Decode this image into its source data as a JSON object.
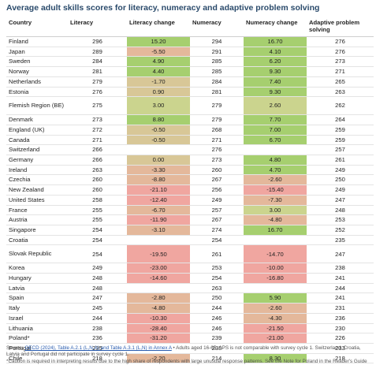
{
  "chart_data": {
    "type": "table",
    "title": "Average adult skills scores for literacy, numeracy and adaptive problem solving",
    "columns": [
      "Country",
      "Literacy",
      "Literacy change",
      "Numeracy",
      "Numeracy change",
      "Adaptive problem solving"
    ],
    "rows": [
      [
        "Finland",
        "296",
        "15.20",
        "294",
        "16.70",
        "276"
      ],
      [
        "Japan",
        "289",
        "-5.50",
        "291",
        "4.10",
        "276"
      ],
      [
        "Sweden",
        "284",
        "4.90",
        "285",
        "6.20",
        "273"
      ],
      [
        "Norway",
        "281",
        "4.40",
        "285",
        "9.30",
        "271"
      ],
      [
        "Netherlands",
        "279",
        "-1.70",
        "284",
        "7.40",
        "265"
      ],
      [
        "Estonia",
        "276",
        "0.90",
        "281",
        "9.30",
        "263"
      ],
      [
        "Flemish Region (BE)",
        "275",
        "3.00",
        "279",
        "2.60",
        "262"
      ],
      [
        "Denmark",
        "273",
        "8.80",
        "279",
        "7.70",
        "264"
      ],
      [
        "England (UK)",
        "272",
        "-0.50",
        "268",
        "7.00",
        "259"
      ],
      [
        "Canada",
        "271",
        "-0.50",
        "271",
        "6.70",
        "259"
      ],
      [
        "Switzerland",
        "266",
        "",
        "276",
        "",
        "257"
      ],
      [
        "Germany",
        "266",
        "0.00",
        "273",
        "4.80",
        "261"
      ],
      [
        "Ireland",
        "263",
        "-3.30",
        "260",
        "4.70",
        "249"
      ],
      [
        "Czechia",
        "260",
        "-8.80",
        "267",
        "-2.60",
        "250"
      ],
      [
        "New Zealand",
        "260",
        "-21.10",
        "256",
        "-15.40",
        "249"
      ],
      [
        "United States",
        "258",
        "-12.40",
        "249",
        "-7.30",
        "247"
      ],
      [
        "France",
        "255",
        "-6.70",
        "257",
        "3.00",
        "248"
      ],
      [
        "Austria",
        "255",
        "-11.90",
        "267",
        "-4.80",
        "253"
      ],
      [
        "Singapore",
        "254",
        "-3.10",
        "274",
        "16.70",
        "252"
      ],
      [
        "Croatia",
        "254",
        "",
        "254",
        "",
        "235"
      ],
      [
        "Slovak Republic",
        "254",
        "-19.50",
        "261",
        "-14.70",
        "247"
      ],
      [
        "Korea",
        "249",
        "-23.00",
        "253",
        "-10.00",
        "238"
      ],
      [
        "Hungary",
        "248",
        "-14.60",
        "254",
        "-16.80",
        "241"
      ],
      [
        "Latvia",
        "248",
        "",
        "263",
        "",
        "244"
      ],
      [
        "Spain",
        "247",
        "-2.80",
        "250",
        "5.90",
        "241"
      ],
      [
        "Italy",
        "245",
        "-4.80",
        "244",
        "-2.60",
        "231"
      ],
      [
        "Israel",
        "244",
        "-10.30",
        "246",
        "-4.30",
        "236"
      ],
      [
        "Lithuania",
        "238",
        "-28.40",
        "246",
        "-21.50",
        "230"
      ],
      [
        "Poland*",
        "236",
        "-31.20",
        "239",
        "-21.00",
        "226"
      ],
      [
        "Portugal",
        "235",
        "",
        "238",
        "",
        "233"
      ],
      [
        "Chile",
        "218",
        "-2.20",
        "214",
        "8.30",
        "218"
      ]
    ]
  },
  "footer": {
    "source_label": "Source: ",
    "source_link": "OECD (2024), Table A.2.1 (L,N,A) and Table A.3.1 (L,N) in Annex A",
    "note1": " • Adults aged 16-65. APS is not comparable with survey cycle 1. Switzerland, Croatia, Latvia and Portugal did not participate in survey cycle 1.",
    "note2": "*Caution is required in interpreting results due to the high share of respondents with large unusual response patterns. See the Note for Poland in the Reader's Guide"
  },
  "colors": {
    "title": "#2a4a6b",
    "strong_gain": "#a6cf6f",
    "mild_gain": "#cbd48e",
    "neutral": "#d8c797",
    "mild_loss": "#e4b89b",
    "strong_loss": "#f0a6a0"
  }
}
